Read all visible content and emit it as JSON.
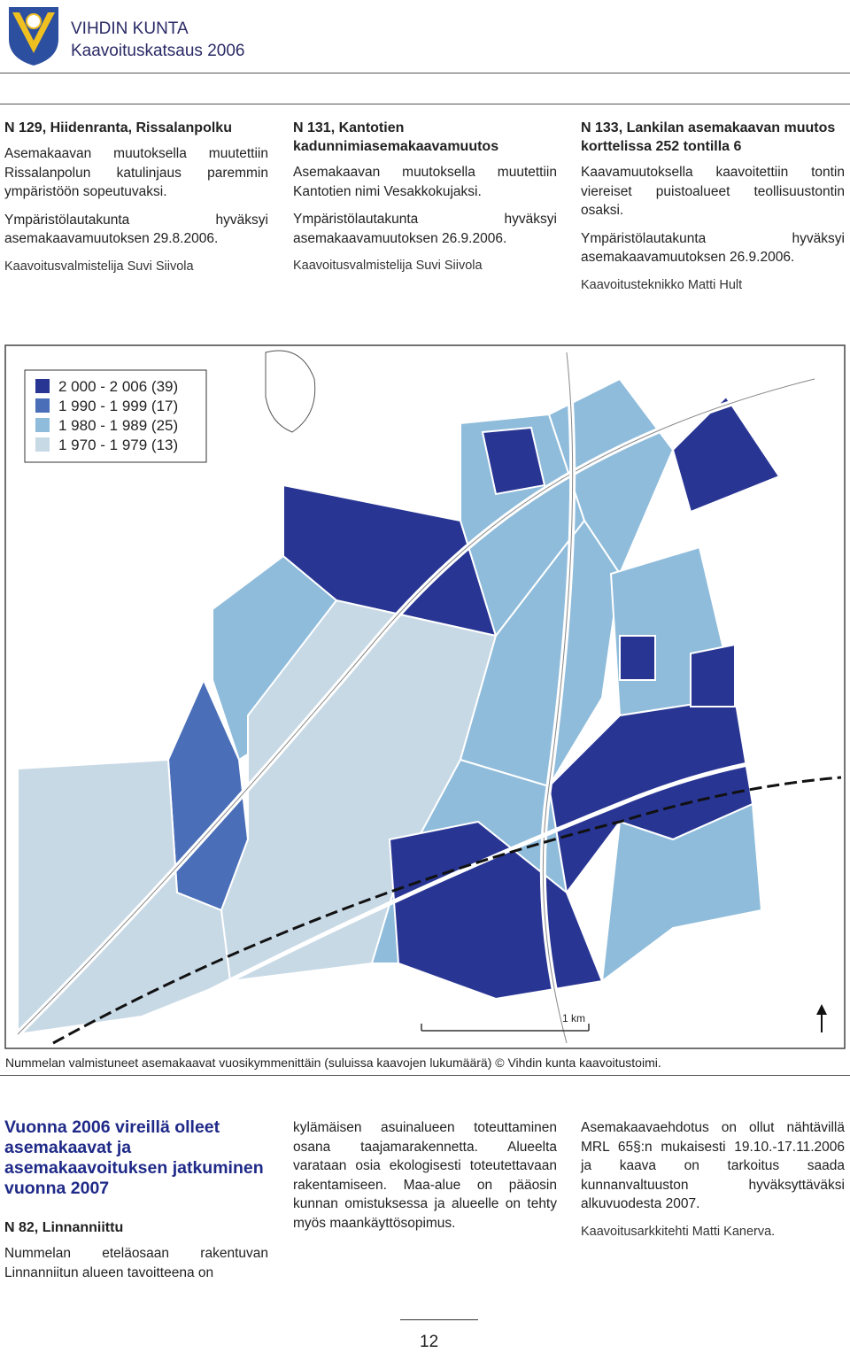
{
  "header": {
    "org": "VIHDIN KUNTA",
    "subtitle": "Kaavoituskatsaus 2006"
  },
  "top_columns": [
    {
      "title": "N 129, Hiidenranta, Rissalanpolku",
      "body": "Asemakaavan muutoksella muutettiin Rissalanpolun katulinjaus paremmin ympäristöön sopeutuvaksi.",
      "approval": "Ympäristölautakunta hyväksyi asemakaavamuutoksen 29.8.2006.",
      "signature": "Kaavoitusvalmistelija Suvi Siivola"
    },
    {
      "title": "N 131, Kantotien kadunnimiasemakaavamuutos",
      "body": "Asemakaavan muutoksella muutettiin Kantotien nimi Vesakkokujaksi.",
      "approval": "Ympäristölautakunta hyväksyi asemakaavamuutoksen 26.9.2006.",
      "signature": "Kaavoitusvalmistelija Suvi Siivola"
    },
    {
      "title": "N 133, Lankilan asemakaavan muutos korttelissa 252 tontilla 6",
      "body": "Kaavamuutoksella kaavoitettiin tontin viereiset puistoalueet teollisuustontin osaksi.",
      "approval": "Ympäristölautakunta hyväksyi asemakaavamuutoksen 26.9.2006.",
      "signature": "Kaavoitusteknikko Matti Hult"
    }
  ],
  "map": {
    "legend": [
      {
        "label": "2 000 - 2 006 (39)",
        "color": "#283593"
      },
      {
        "label": "1 990 - 1 999 (17)",
        "color": "#4a6fb8"
      },
      {
        "label": "1 980 - 1 989 (25)",
        "color": "#8fbcdb"
      },
      {
        "label": "1 970 - 1 979 (13)",
        "color": "#c8d9e6"
      }
    ],
    "scale_label": "1 km",
    "caption": "Nummelan valmistuneet asemakaavat vuosikymmenittäin (suluissa kaavojen lukumäärä) © Vihdin kunta kaavoitustoimi."
  },
  "bottom": {
    "heading": "Vuonna 2006 vireillä olleet asemakaavat ja asemakaavoituksen jatkuminen vuonna 2007",
    "subheading": "N 82, Linnanniittu",
    "col1_text": "Nummelan eteläosaan rakentuvan Linnanniitun alueen tavoitteena on",
    "col2_text": "kylämäisen asuinalueen toteuttaminen osana taajamarakennetta. Alueelta varataan osia ekologisesti toteutettavaan rakentamiseen. Maa-alue on pääosin kunnan omistuksessa ja alueelle on tehty myös maankäyttösopimus.",
    "col3_text": "Asemakaavaehdotus on ollut nähtävillä MRL 65§:n mukaisesti 19.10.-17.11.2006 ja kaava on tarkoitus saada kunnanvaltuuston hyväksyttäväksi alkuvuodesta 2007.",
    "col3_signature": "Kaavoitusarkkitehti Matti Kanerva."
  },
  "page_number": "12"
}
